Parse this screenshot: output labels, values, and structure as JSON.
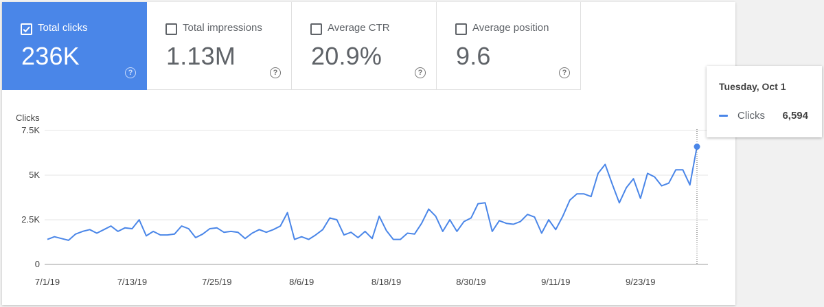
{
  "metrics": [
    {
      "label": "Total clicks",
      "value": "236K",
      "checked": true,
      "active": true
    },
    {
      "label": "Total impressions",
      "value": "1.13M",
      "checked": false,
      "active": false
    },
    {
      "label": "Average CTR",
      "value": "20.9%",
      "checked": false,
      "active": false
    },
    {
      "label": "Average position",
      "value": "9.6",
      "checked": false,
      "active": false
    }
  ],
  "help_glyph": "?",
  "tooltip": {
    "date": "Tuesday, Oct 1",
    "series": "Clicks",
    "value": "6,594"
  },
  "colors": {
    "accent": "#4a86e8",
    "text": "#5f6368",
    "grid": "#e6e6e6"
  },
  "chart_data": {
    "type": "line",
    "ylabel": "Clicks",
    "ylim": [
      0,
      7500
    ],
    "y_ticks": [
      0,
      2500,
      5000,
      7500
    ],
    "y_tick_labels": [
      "0",
      "2.5K",
      "5K",
      "7.5K"
    ],
    "x_ticks": [
      "7/1/19",
      "7/13/19",
      "7/25/19",
      "8/6/19",
      "8/18/19",
      "8/30/19",
      "9/11/19",
      "9/23/19"
    ],
    "x_start": "2019-07-01",
    "x_end": "2019-10-01",
    "grid": true,
    "highlight": {
      "date": "2019-10-01",
      "value": 6594
    },
    "series": [
      {
        "name": "Clicks",
        "values": [
          1400,
          1550,
          1450,
          1350,
          1700,
          1850,
          1950,
          1750,
          1950,
          2150,
          1850,
          2050,
          2000,
          2500,
          1600,
          1850,
          1650,
          1650,
          1700,
          2150,
          2000,
          1500,
          1700,
          2000,
          2050,
          1800,
          1850,
          1800,
          1450,
          1750,
          1950,
          1800,
          1950,
          2150,
          2900,
          1400,
          1550,
          1400,
          1650,
          1950,
          2600,
          2500,
          1650,
          1800,
          1500,
          1850,
          1450,
          2700,
          1900,
          1400,
          1400,
          1750,
          1700,
          2300,
          3100,
          2700,
          1850,
          2500,
          1850,
          2400,
          2600,
          3400,
          3450,
          1850,
          2450,
          2300,
          2250,
          2400,
          2800,
          2650,
          1750,
          2500,
          1950,
          2700,
          3600,
          3950,
          3950,
          3800,
          5100,
          5600,
          4500,
          3450,
          4300,
          4800,
          3700,
          5100,
          4900,
          4400,
          4550,
          5300,
          5300,
          4450,
          6594
        ]
      }
    ]
  }
}
